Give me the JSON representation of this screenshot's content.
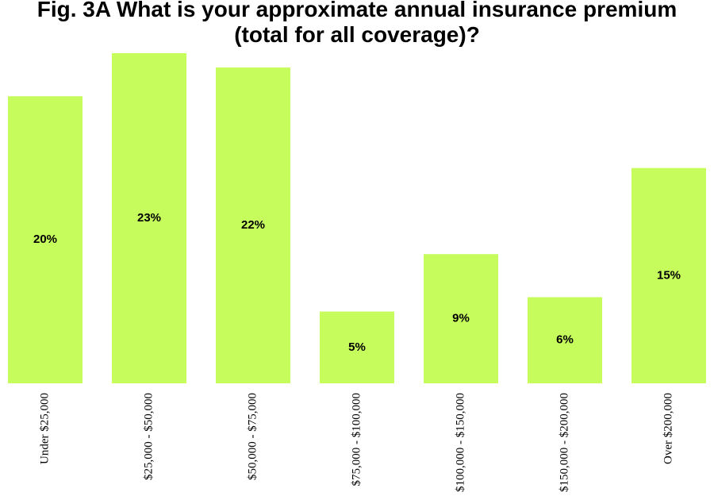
{
  "chart_data": {
    "type": "bar",
    "title": "Fig. 3A What is your approximate annual insurance premium (total for all coverage)?",
    "categories": [
      "Under $25,000",
      "$25,000 - $50,000",
      "$50,000 - $75,000",
      "$75,000 - $100,000",
      "$100,000 - $150,000",
      "$150,000 - $200,000",
      "Over $200,000"
    ],
    "values": [
      20,
      23,
      22,
      5,
      9,
      6,
      15
    ],
    "value_labels": [
      "20%",
      "23%",
      "22%",
      "5%",
      "9%",
      "6%",
      "15%"
    ],
    "color": "#c6fc5c"
  }
}
